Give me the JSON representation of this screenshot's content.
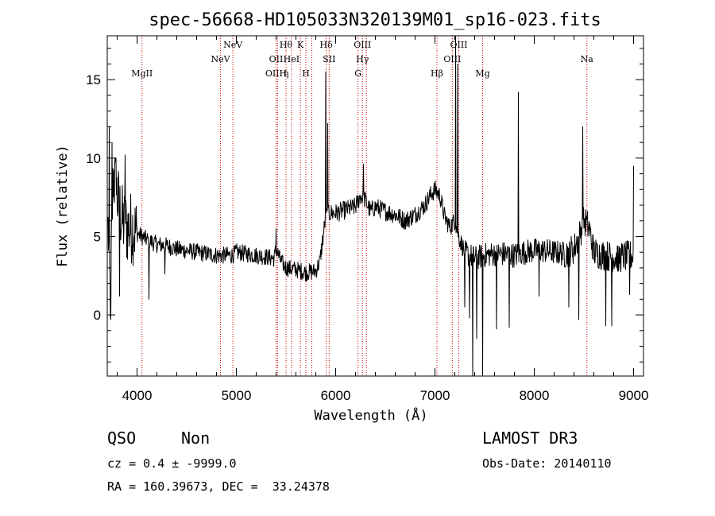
{
  "chart_data": {
    "type": "line",
    "title": "spec-56668-HD105033N320139M01_sp16-023.fits",
    "xlabel": "Wavelength (Å)",
    "ylabel": "Flux (relative)",
    "xlim": [
      3700,
      9100
    ],
    "ylim": [
      -3.9,
      17.8
    ],
    "x_ticks": [
      4000,
      5000,
      6000,
      7000,
      8000,
      9000
    ],
    "y_ticks": [
      0,
      5,
      10,
      15
    ],
    "grid": false,
    "line_color": "#000000",
    "marker_color": "#cc0000",
    "spectrum_anchors": [
      [
        3710,
        5.5
      ],
      [
        3730,
        1.0
      ],
      [
        3760,
        9.0
      ],
      [
        3800,
        7.5
      ],
      [
        3850,
        6.0
      ],
      [
        3900,
        5.5
      ],
      [
        3950,
        5.6
      ],
      [
        4000,
        5.2
      ],
      [
        4100,
        4.8
      ],
      [
        4200,
        4.5
      ],
      [
        4300,
        4.4
      ],
      [
        4400,
        4.2
      ],
      [
        4500,
        4.1
      ],
      [
        4600,
        4.0
      ],
      [
        4700,
        3.9
      ],
      [
        4800,
        3.8
      ],
      [
        4960,
        3.8
      ],
      [
        5000,
        4.0
      ],
      [
        5100,
        3.9
      ],
      [
        5200,
        3.8
      ],
      [
        5300,
        3.7
      ],
      [
        5380,
        3.6
      ],
      [
        5400,
        4.2
      ],
      [
        5450,
        3.4
      ],
      [
        5500,
        3.0
      ],
      [
        5600,
        2.9
      ],
      [
        5700,
        2.7
      ],
      [
        5800,
        2.8
      ],
      [
        5840,
        3.4
      ],
      [
        5870,
        4.8
      ],
      [
        5900,
        6.3
      ],
      [
        5950,
        6.5
      ],
      [
        6000,
        6.5
      ],
      [
        6100,
        6.7
      ],
      [
        6200,
        6.9
      ],
      [
        6250,
        7.6
      ],
      [
        6300,
        7.3
      ],
      [
        6350,
        6.6
      ],
      [
        6400,
        6.9
      ],
      [
        6500,
        6.6
      ],
      [
        6600,
        6.4
      ],
      [
        6700,
        6.0
      ],
      [
        6800,
        6.4
      ],
      [
        6900,
        7.0
      ],
      [
        6950,
        7.6
      ],
      [
        7000,
        8.0
      ],
      [
        7050,
        7.6
      ],
      [
        7100,
        6.2
      ],
      [
        7150,
        5.6
      ],
      [
        7200,
        6.0
      ],
      [
        7250,
        4.8
      ],
      [
        7300,
        4.0
      ],
      [
        7400,
        3.6
      ],
      [
        7500,
        3.8
      ],
      [
        7600,
        3.9
      ],
      [
        7700,
        3.9
      ],
      [
        7800,
        3.8
      ],
      [
        7900,
        4.0
      ],
      [
        8000,
        4.1
      ],
      [
        8100,
        4.1
      ],
      [
        8200,
        4.0
      ],
      [
        8300,
        3.9
      ],
      [
        8400,
        4.2
      ],
      [
        8450,
        5.0
      ],
      [
        8500,
        6.0
      ],
      [
        8550,
        5.6
      ],
      [
        8600,
        4.0
      ],
      [
        8700,
        3.8
      ],
      [
        8800,
        3.7
      ],
      [
        8900,
        3.7
      ],
      [
        9000,
        3.8
      ]
    ],
    "spectrum_spikes": [
      [
        3720,
        12.0
      ],
      [
        3735,
        -0.3
      ],
      [
        3750,
        11.0
      ],
      [
        3790,
        10.0
      ],
      [
        3825,
        1.2
      ],
      [
        3880,
        10.2
      ],
      [
        4120,
        1.0
      ],
      [
        4280,
        2.6
      ],
      [
        5400,
        5.5
      ],
      [
        5900,
        15.5
      ],
      [
        5920,
        12.2
      ],
      [
        6280,
        9.6
      ],
      [
        7210,
        17.8
      ],
      [
        7230,
        16.0
      ],
      [
        7300,
        0.5
      ],
      [
        7350,
        -0.2
      ],
      [
        7380,
        -3.9
      ],
      [
        7420,
        -1.5
      ],
      [
        7480,
        -3.9
      ],
      [
        7620,
        -0.9
      ],
      [
        7750,
        -0.8
      ],
      [
        7840,
        14.2
      ],
      [
        8050,
        1.2
      ],
      [
        8350,
        0.5
      ],
      [
        8450,
        -0.3
      ],
      [
        8490,
        12.0
      ],
      [
        8720,
        -0.7
      ],
      [
        8780,
        -0.7
      ],
      [
        8850,
        2.8
      ],
      [
        8960,
        1.3
      ],
      [
        9000,
        9.5
      ]
    ],
    "lines": [
      {
        "x": 4050,
        "labels": [
          {
            "text": "MgII",
            "row": 3
          }
        ]
      },
      {
        "x": 4840,
        "labels": [
          {
            "text": "NeV",
            "row": 2
          }
        ]
      },
      {
        "x": 4965,
        "labels": [
          {
            "text": "NeV",
            "row": 1
          }
        ]
      },
      {
        "x": 5400,
        "labels": [
          {
            "text": "OII",
            "row": 2
          },
          {
            "text": "OIIH",
            "row": 3
          }
        ]
      },
      {
        "x": 5415,
        "labels": []
      },
      {
        "x": 5500,
        "labels": [
          {
            "text": "Hθ",
            "row": 1
          },
          {
            "text": "η",
            "row": 3
          }
        ]
      },
      {
        "x": 5555,
        "labels": [
          {
            "text": "HeI",
            "row": 2
          }
        ]
      },
      {
        "x": 5645,
        "labels": [
          {
            "text": "K",
            "row": 1
          }
        ]
      },
      {
        "x": 5700,
        "labels": [
          {
            "text": "H",
            "row": 3
          }
        ]
      },
      {
        "x": 5760,
        "labels": []
      },
      {
        "x": 5905,
        "labels": [
          {
            "text": "Hδ",
            "row": 1
          }
        ]
      },
      {
        "x": 5935,
        "labels": [
          {
            "text": "SII",
            "row": 2
          }
        ]
      },
      {
        "x": 6225,
        "labels": [
          {
            "text": "G",
            "row": 3
          }
        ]
      },
      {
        "x": 6270,
        "labels": [
          {
            "text": "OIII",
            "row": 1
          },
          {
            "text": "Hγ",
            "row": 2
          }
        ]
      },
      {
        "x": 6310,
        "labels": []
      },
      {
        "x": 7020,
        "labels": [
          {
            "text": "Hβ",
            "row": 3
          }
        ]
      },
      {
        "x": 7175,
        "labels": [
          {
            "text": "OIII",
            "row": 2
          }
        ]
      },
      {
        "x": 7240,
        "labels": [
          {
            "text": "OIII",
            "row": 1
          }
        ]
      },
      {
        "x": 7480,
        "labels": [
          {
            "text": "Mg",
            "row": 3
          }
        ]
      },
      {
        "x": 8530,
        "labels": [
          {
            "text": "Na",
            "row": 2
          }
        ]
      }
    ]
  },
  "info": {
    "class": "QSO",
    "subclass": "Non",
    "cz": "cz = 0.4 ± -9999.0",
    "radec": "RA = 160.39673, DEC =  33.24378",
    "survey": "LAMOST DR3",
    "obs_date": "Obs-Date: 20140110"
  }
}
